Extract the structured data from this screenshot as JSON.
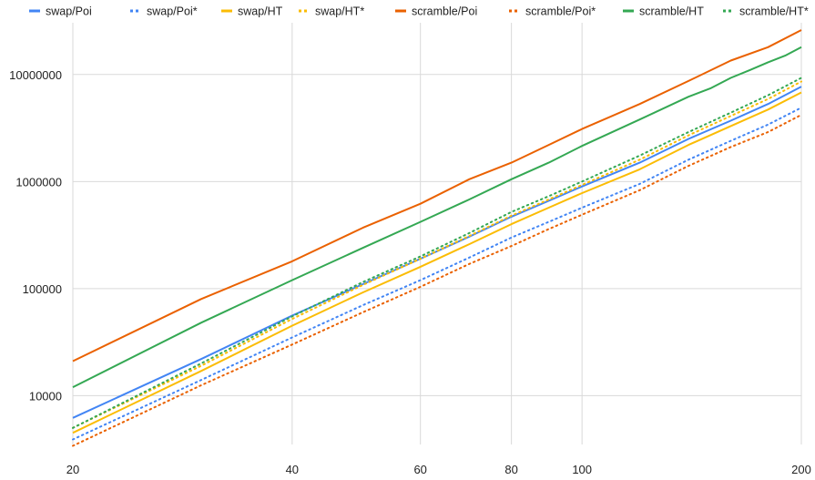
{
  "chart_data": {
    "type": "line",
    "title": "",
    "xlabel": "",
    "ylabel": "",
    "x_scale": "log",
    "y_scale": "log",
    "xlim": [
      20,
      200
    ],
    "ylim": [
      3500,
      26000000
    ],
    "grid": true,
    "legend_position": "top",
    "x_ticks": [
      {
        "value": 20,
        "label": "20"
      },
      {
        "value": 40,
        "label": "40"
      },
      {
        "value": 60,
        "label": "60"
      },
      {
        "value": 80,
        "label": "80"
      },
      {
        "value": 100,
        "label": "100"
      },
      {
        "value": 200,
        "label": "200"
      }
    ],
    "y_ticks": [
      {
        "value": 10000,
        "label": "10000"
      },
      {
        "value": 100000,
        "label": "100000"
      },
      {
        "value": 1000000,
        "label": "1000000"
      },
      {
        "value": 10000000,
        "label": "10000000"
      }
    ],
    "series": [
      {
        "name": "swap/Poi",
        "color": "#4285f4",
        "dash": "solid",
        "x": [
          20,
          30,
          40,
          50,
          60,
          70,
          80,
          90,
          100,
          120,
          140,
          160,
          180,
          200
        ],
        "y": [
          6200,
          22000,
          56000,
          110000,
          190000,
          305000,
          470000,
          660000,
          900000,
          1500000,
          2500000,
          3700000,
          5300000,
          7700000
        ]
      },
      {
        "name": "swap/Poi*",
        "color": "#4285f4",
        "dash": "dotted",
        "x": [
          20,
          30,
          40,
          50,
          60,
          70,
          80,
          90,
          100,
          120,
          140,
          160,
          180,
          200
        ],
        "y": [
          3900,
          14000,
          35000,
          70000,
          120000,
          195000,
          300000,
          420000,
          570000,
          950000,
          1600000,
          2400000,
          3400000,
          4900000
        ]
      },
      {
        "name": "swap/HT",
        "color": "#fbbc04",
        "dash": "solid",
        "x": [
          20,
          30,
          40,
          50,
          60,
          70,
          80,
          90,
          100,
          120,
          140,
          160,
          180,
          200
        ],
        "y": [
          4500,
          17000,
          45000,
          92000,
          160000,
          260000,
          400000,
          570000,
          780000,
          1300000,
          2200000,
          3300000,
          4700000,
          6800000
        ]
      },
      {
        "name": "swap/HT*",
        "color": "#fbbc04",
        "dash": "dotted",
        "x": [
          20,
          30,
          40,
          50,
          60,
          70,
          80,
          90,
          100,
          120,
          140,
          160,
          180,
          200
        ],
        "y": [
          5000,
          19000,
          52000,
          108000,
          190000,
          310000,
          480000,
          680000,
          930000,
          1600000,
          2700000,
          4100000,
          5900000,
          8600000
        ]
      },
      {
        "name": "scramble/Poi",
        "color": "#ea6100",
        "dash": "solid",
        "x": [
          20,
          30,
          40,
          50,
          60,
          70,
          80,
          90,
          100,
          120,
          140,
          160,
          180,
          200
        ],
        "y": [
          21000,
          80000,
          180000,
          370000,
          620000,
          1050000,
          1500000,
          2200000,
          3100000,
          5300000,
          8700000,
          13500000,
          18000000,
          26000000
        ]
      },
      {
        "name": "scramble/Poi*",
        "color": "#ea6100",
        "dash": "dotted",
        "x": [
          20,
          30,
          40,
          50,
          60,
          70,
          80,
          90,
          100,
          120,
          140,
          160,
          180,
          200
        ],
        "y": [
          3400,
          12500,
          30000,
          60000,
          104000,
          170000,
          250000,
          360000,
          490000,
          830000,
          1400000,
          2100000,
          2900000,
          4200000
        ]
      },
      {
        "name": "scramble/HT",
        "color": "#34a853",
        "dash": "solid",
        "x": [
          20,
          30,
          40,
          50,
          60,
          70,
          80,
          90,
          100,
          120,
          140,
          150,
          160,
          170,
          180,
          190,
          200
        ],
        "y": [
          12000,
          48000,
          120000,
          240000,
          420000,
          680000,
          1050000,
          1500000,
          2150000,
          3800000,
          6200000,
          7400000,
          9300000,
          11000000,
          13000000,
          15000000,
          18000000
        ]
      },
      {
        "name": "scramble/HT*",
        "color": "#34a853",
        "dash": "dotted",
        "x": [
          20,
          30,
          40,
          50,
          60,
          70,
          80,
          90,
          100,
          120,
          140,
          160,
          180,
          200
        ],
        "y": [
          5000,
          20000,
          55000,
          115000,
          200000,
          330000,
          520000,
          730000,
          1000000,
          1750000,
          2900000,
          4400000,
          6400000,
          9300000
        ]
      }
    ]
  }
}
